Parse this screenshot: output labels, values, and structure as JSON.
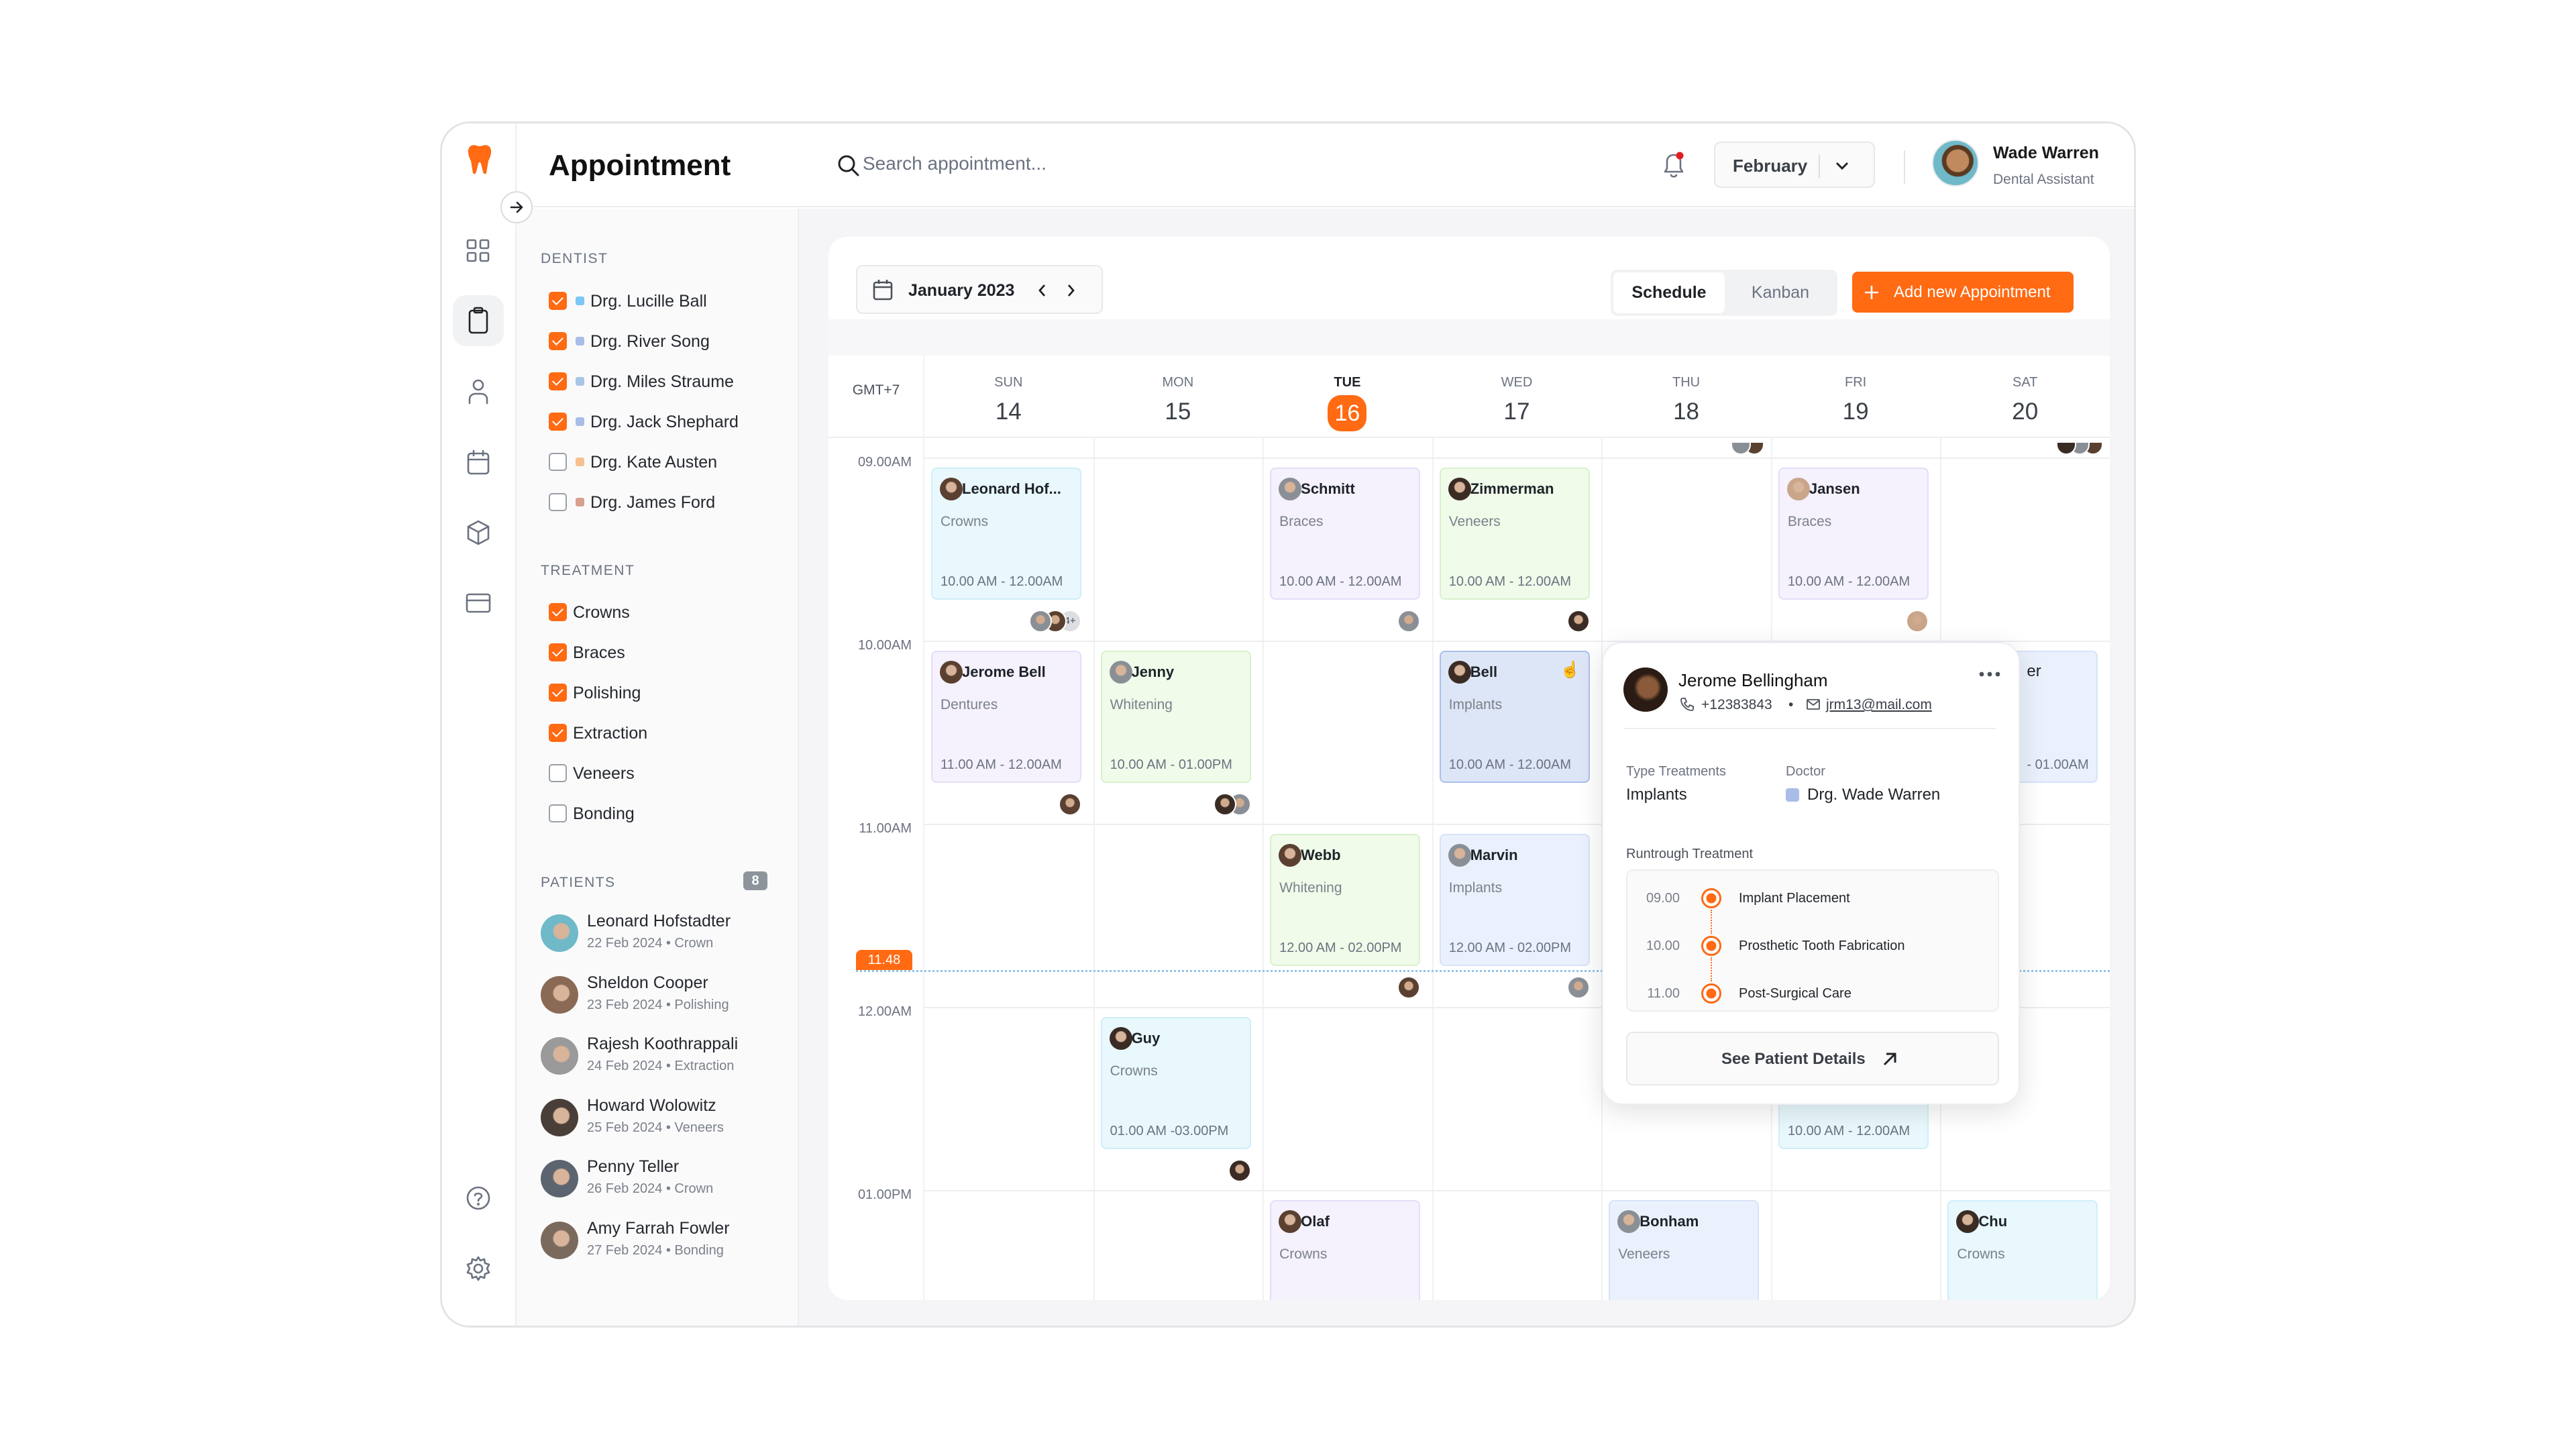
{
  "header": {
    "title": "Appointment",
    "search_placeholder": "Search appointment...",
    "month_select": "February",
    "user": {
      "name": "Wade Warren",
      "role": "Dental Assistant"
    }
  },
  "rail": {
    "items": [
      "dashboard-icon",
      "clipboard-icon",
      "user-icon",
      "calendar-icon",
      "box-icon",
      "card-icon"
    ],
    "active": 1,
    "bottom": [
      "help-icon",
      "settings-icon"
    ]
  },
  "filters": {
    "dentist_label": "DENTIST",
    "dentists": [
      {
        "label": "Drg. Lucille Ball",
        "checked": true,
        "color": "#7cc7f5"
      },
      {
        "label": "Drg. River Song",
        "checked": true,
        "color": "#a9bde8"
      },
      {
        "label": "Drg. Miles Straume",
        "checked": true,
        "color": "#a8c6e6"
      },
      {
        "label": "Drg. Jack Shephard",
        "checked": true,
        "color": "#a9bde8"
      },
      {
        "label": "Drg. Kate Austen",
        "checked": false,
        "color": "#f6c08f"
      },
      {
        "label": "Drg. James Ford",
        "checked": false,
        "color": "#d99f8d"
      }
    ],
    "treatment_label": "TREATMENT",
    "treatments": [
      {
        "label": "Crowns",
        "checked": true
      },
      {
        "label": "Braces",
        "checked": true
      },
      {
        "label": "Polishing",
        "checked": true
      },
      {
        "label": "Extraction",
        "checked": true
      },
      {
        "label": "Veneers",
        "checked": false
      },
      {
        "label": "Bonding",
        "checked": false
      }
    ],
    "patients_label": "PATIENTS",
    "patients_count": "8",
    "patients": [
      {
        "name": "Leonard Hofstadter",
        "sub": "22 Feb 2024 • Crown",
        "color": "#6fb9c9"
      },
      {
        "name": "Sheldon Cooper",
        "sub": "23 Feb 2024 • Polishing",
        "color": "#8a6a55"
      },
      {
        "name": "Rajesh Koothrappali",
        "sub": "24 Feb 2024 • Extraction",
        "color": "#9a9a9a"
      },
      {
        "name": "Howard Wolowitz",
        "sub": "25 Feb 2024 • Veneers",
        "color": "#4a3e38"
      },
      {
        "name": "Penny Teller",
        "sub": "26 Feb 2024 • Crown",
        "color": "#5c6470"
      },
      {
        "name": "Amy Farrah Fowler",
        "sub": "27 Feb 2024 • Bonding",
        "color": "#7a6a5e"
      }
    ]
  },
  "toolbar": {
    "period": "January 2023",
    "views": [
      "Schedule",
      "Kanban"
    ],
    "active_view": "Schedule",
    "add_label": "Add new Appointment"
  },
  "calendar": {
    "timezone": "GMT+7",
    "days": [
      {
        "name": "SUN",
        "num": "14"
      },
      {
        "name": "MON",
        "num": "15"
      },
      {
        "name": "TUE",
        "num": "16",
        "today": true
      },
      {
        "name": "WED",
        "num": "17"
      },
      {
        "name": "THU",
        "num": "18"
      },
      {
        "name": "FRI",
        "num": "19"
      },
      {
        "name": "SAT",
        "num": "20"
      }
    ],
    "hours": [
      "09.00AM",
      "10.00AM",
      "11.00AM",
      "12.00AM",
      "01.00PM"
    ],
    "now": "11.48",
    "events": [
      {
        "name": "Leonard Hof...",
        "treatment": "Crowns",
        "time": "10.00 AM - 12.00AM",
        "day": 0,
        "hour": 0,
        "color": "cyan",
        "avatars": 2,
        "more": "4+"
      },
      {
        "name": "Schmitt",
        "treatment": "Braces",
        "time": "10.00 AM - 12.00AM",
        "day": 2,
        "hour": 0,
        "color": "purple",
        "avatars": 1
      },
      {
        "name": "Zimmerman",
        "treatment": "Veneers",
        "time": "10.00 AM - 12.00AM",
        "day": 3,
        "hour": 0,
        "color": "green",
        "avatars": 1
      },
      {
        "name": "Jansen",
        "treatment": "Braces",
        "time": "10.00 AM - 12.00AM",
        "day": 5,
        "hour": 0,
        "color": "purple",
        "avatars": 1
      },
      {
        "name": "Jerome Bell",
        "treatment": "Dentures",
        "time": "11.00 AM - 12.00AM",
        "day": 0,
        "hour": 1,
        "color": "purple",
        "avatars": 1
      },
      {
        "name": "Jenny",
        "treatment": "Whitening",
        "time": "10.00 AM - 01.00PM",
        "day": 1,
        "hour": 1,
        "color": "green",
        "avatars": 2
      },
      {
        "name": "Bell",
        "treatment": "Implants",
        "time": "10.00 AM - 12.00AM",
        "day": 3,
        "hour": 1,
        "color": "selected",
        "avatars": 0
      },
      {
        "name": "er",
        "treatment": "",
        "time": "- 01.00AM",
        "day": 6,
        "hour": 1,
        "color": "blue",
        "avatars": 0,
        "partial": true
      },
      {
        "name": "Webb",
        "treatment": "Whitening",
        "time": "12.00 AM - 02.00PM",
        "day": 2,
        "hour": 2,
        "color": "green",
        "avatars": 1
      },
      {
        "name": "Marvin",
        "treatment": "Implants",
        "time": "12.00 AM - 02.00PM",
        "day": 3,
        "hour": 2,
        "color": "blue",
        "avatars": 1
      },
      {
        "name": "Guy",
        "treatment": "Crowns",
        "time": "01.00 AM -03.00PM",
        "day": 1,
        "hour": 3,
        "color": "cyan",
        "avatars": 1
      },
      {
        "name": "",
        "treatment": "",
        "time": "10.00 AM - 12.00AM",
        "day": 5,
        "hour": 3,
        "color": "cyan",
        "avatars": 0
      },
      {
        "name": "Olaf",
        "treatment": "Crowns",
        "time": "",
        "day": 2,
        "hour": 4,
        "color": "purple",
        "avatars": 0
      },
      {
        "name": "Bonham",
        "treatment": "Veneers",
        "time": "",
        "day": 4,
        "hour": 4,
        "color": "blue",
        "avatars": 0
      },
      {
        "name": "Chu",
        "treatment": "Crowns",
        "time": "",
        "day": 6,
        "hour": 4,
        "color": "cyan",
        "avatars": 0
      }
    ]
  },
  "popup": {
    "name": "Jerome Bellingham",
    "phone": "+12383843",
    "email": "jrm13@mail.com",
    "type_label": "Type Treatments",
    "type_value": "Implants",
    "doctor_label": "Doctor",
    "doctor_value": "Drg. Wade Warren",
    "doctor_color": "#a9bde8",
    "runthrough_label": "Runtrough Treatment",
    "steps": [
      {
        "time": "09.00",
        "label": "Implant Placement"
      },
      {
        "time": "10.00",
        "label": "Prosthetic Tooth Fabrication"
      },
      {
        "time": "11.00",
        "label": "Post-Surgical Care"
      }
    ],
    "details_label": "See Patient Details"
  },
  "colors": {
    "accent": "#ff6a13",
    "now_line": "#8cc4f0"
  }
}
